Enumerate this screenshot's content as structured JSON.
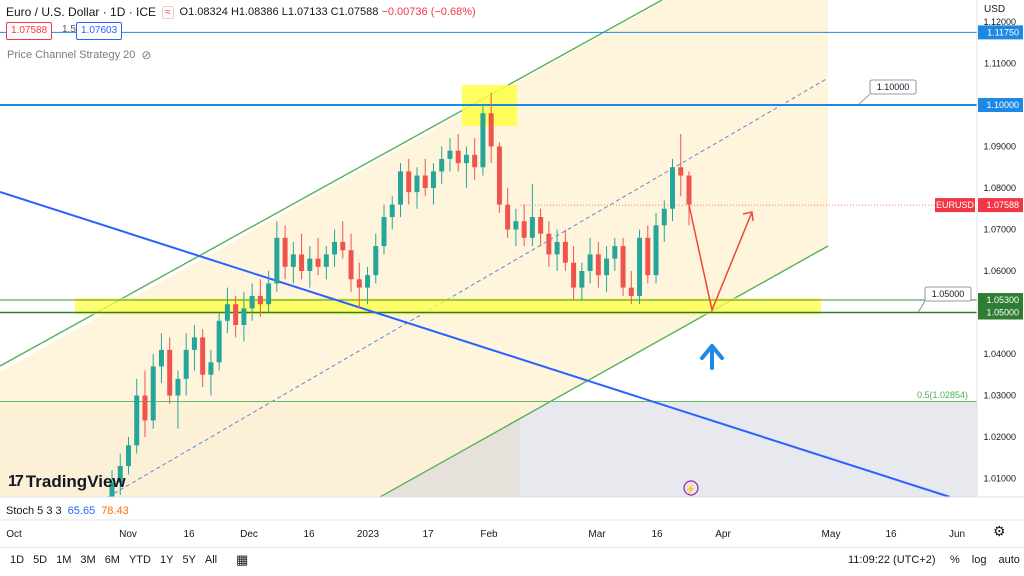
{
  "header": {
    "symbol": "Euro / U.S. Dollar · 1D · ICE",
    "open": "O1.08324",
    "high": "H1.08386",
    "low": "L1.07133",
    "close": "C1.07588",
    "change": "−0.00736 (−0.68%)"
  },
  "quote": {
    "sell": "1.07588",
    "spread": "1.5",
    "buy": "1.07603"
  },
  "strategy_label": "Price Channel Strategy 20",
  "brand": "TradingView",
  "stoch": {
    "label": "Stoch 5 3 3",
    "k": "65.65",
    "d": "78.43"
  },
  "currency": "USD",
  "time_ranges": [
    "1D",
    "5D",
    "1M",
    "3M",
    "6M",
    "YTD",
    "1Y",
    "5Y",
    "All"
  ],
  "clock": "11:09:22 (UTC+2)",
  "scale_options": [
    "%",
    "log",
    "auto"
  ],
  "colors": {
    "up": "#26a69a",
    "down": "#ef5350",
    "channel_line": "#4caf50",
    "channel_fill": "#fff3d6",
    "zone": "#ffff44",
    "blue_line": "#2962ff",
    "resistance": "#1e88e5",
    "arrow_red": "#f44336",
    "arrow_blue": "#1e88e5"
  },
  "chart_data": {
    "type": "candlestick",
    "y_ticks": [
      "1.12000",
      "1.11000",
      "1.10000",
      "1.09000",
      "1.08000",
      "1.07000",
      "1.06000",
      "1.05000",
      "1.04000",
      "1.03000",
      "1.02000",
      "1.01000"
    ],
    "x_ticks": [
      "Oct",
      "Nov",
      "16",
      "Dec",
      "16",
      "2023",
      "17",
      "Feb",
      "Mar",
      "16",
      "Apr",
      "May",
      "16",
      "Jun"
    ],
    "price_badges": [
      {
        "text": "1.11750",
        "value": 1.1175,
        "style": "blue"
      },
      {
        "text": "1.10000",
        "value": 1.1,
        "style": "blue"
      },
      {
        "text": "1.07588",
        "value": 1.07588,
        "style": "red",
        "tag": "EURUSD"
      },
      {
        "text": "1.05300",
        "value": 1.053,
        "style": "green"
      },
      {
        "text": "1.05000",
        "value": 1.05,
        "style": "green"
      }
    ],
    "annotations": [
      {
        "text": "1.10000",
        "value": 1.1
      },
      {
        "text": "1.05000",
        "value": 1.05
      },
      {
        "text": "0.5(1.02854)",
        "value": 1.02854
      }
    ],
    "candles": [
      [
        1.005,
        1.012,
        1.003,
        1.009
      ],
      [
        1.009,
        1.016,
        1.006,
        1.013
      ],
      [
        1.013,
        1.02,
        1.011,
        1.018
      ],
      [
        1.018,
        1.034,
        1.016,
        1.03
      ],
      [
        1.03,
        1.036,
        1.02,
        1.024
      ],
      [
        1.024,
        1.04,
        1.022,
        1.037
      ],
      [
        1.037,
        1.045,
        1.033,
        1.041
      ],
      [
        1.041,
        1.044,
        1.028,
        1.03
      ],
      [
        1.03,
        1.036,
        1.022,
        1.034
      ],
      [
        1.034,
        1.045,
        1.03,
        1.041
      ],
      [
        1.041,
        1.047,
        1.036,
        1.044
      ],
      [
        1.044,
        1.046,
        1.032,
        1.035
      ],
      [
        1.035,
        1.041,
        1.03,
        1.038
      ],
      [
        1.038,
        1.05,
        1.036,
        1.048
      ],
      [
        1.048,
        1.056,
        1.045,
        1.052
      ],
      [
        1.052,
        1.054,
        1.044,
        1.047
      ],
      [
        1.047,
        1.055,
        1.043,
        1.051
      ],
      [
        1.051,
        1.057,
        1.048,
        1.054
      ],
      [
        1.054,
        1.058,
        1.049,
        1.052
      ],
      [
        1.052,
        1.06,
        1.05,
        1.057
      ],
      [
        1.057,
        1.072,
        1.055,
        1.068
      ],
      [
        1.068,
        1.071,
        1.058,
        1.061
      ],
      [
        1.061,
        1.067,
        1.057,
        1.064
      ],
      [
        1.064,
        1.069,
        1.058,
        1.06
      ],
      [
        1.06,
        1.066,
        1.056,
        1.063
      ],
      [
        1.063,
        1.068,
        1.059,
        1.061
      ],
      [
        1.061,
        1.066,
        1.058,
        1.064
      ],
      [
        1.064,
        1.07,
        1.061,
        1.067
      ],
      [
        1.067,
        1.072,
        1.063,
        1.065
      ],
      [
        1.065,
        1.069,
        1.055,
        1.058
      ],
      [
        1.058,
        1.062,
        1.051,
        1.056
      ],
      [
        1.056,
        1.061,
        1.052,
        1.059
      ],
      [
        1.059,
        1.069,
        1.057,
        1.066
      ],
      [
        1.066,
        1.076,
        1.064,
        1.073
      ],
      [
        1.073,
        1.078,
        1.07,
        1.076
      ],
      [
        1.076,
        1.086,
        1.073,
        1.084
      ],
      [
        1.084,
        1.087,
        1.076,
        1.079
      ],
      [
        1.079,
        1.085,
        1.075,
        1.083
      ],
      [
        1.083,
        1.087,
        1.078,
        1.08
      ],
      [
        1.08,
        1.086,
        1.076,
        1.084
      ],
      [
        1.084,
        1.09,
        1.081,
        1.087
      ],
      [
        1.087,
        1.092,
        1.084,
        1.089
      ],
      [
        1.089,
        1.093,
        1.084,
        1.086
      ],
      [
        1.086,
        1.09,
        1.08,
        1.088
      ],
      [
        1.088,
        1.092,
        1.082,
        1.085
      ],
      [
        1.085,
        1.1,
        1.083,
        1.098
      ],
      [
        1.098,
        1.103,
        1.086,
        1.09
      ],
      [
        1.09,
        1.091,
        1.074,
        1.076
      ],
      [
        1.076,
        1.08,
        1.068,
        1.07
      ],
      [
        1.07,
        1.075,
        1.066,
        1.072
      ],
      [
        1.072,
        1.076,
        1.066,
        1.068
      ],
      [
        1.068,
        1.081,
        1.066,
        1.073
      ],
      [
        1.073,
        1.075,
        1.066,
        1.069
      ],
      [
        1.069,
        1.072,
        1.061,
        1.064
      ],
      [
        1.064,
        1.07,
        1.06,
        1.067
      ],
      [
        1.067,
        1.07,
        1.06,
        1.062
      ],
      [
        1.062,
        1.066,
        1.053,
        1.056
      ],
      [
        1.056,
        1.062,
        1.053,
        1.06
      ],
      [
        1.06,
        1.068,
        1.057,
        1.064
      ],
      [
        1.064,
        1.067,
        1.056,
        1.059
      ],
      [
        1.059,
        1.066,
        1.055,
        1.063
      ],
      [
        1.063,
        1.068,
        1.06,
        1.066
      ],
      [
        1.066,
        1.068,
        1.054,
        1.056
      ],
      [
        1.056,
        1.06,
        1.052,
        1.054
      ],
      [
        1.054,
        1.07,
        1.052,
        1.068
      ],
      [
        1.068,
        1.071,
        1.057,
        1.059
      ],
      [
        1.059,
        1.074,
        1.057,
        1.071
      ],
      [
        1.071,
        1.077,
        1.067,
        1.075
      ],
      [
        1.075,
        1.087,
        1.072,
        1.085
      ],
      [
        1.085,
        1.093,
        1.078,
        1.083
      ],
      [
        1.083,
        1.084,
        1.071,
        1.076
      ]
    ]
  }
}
